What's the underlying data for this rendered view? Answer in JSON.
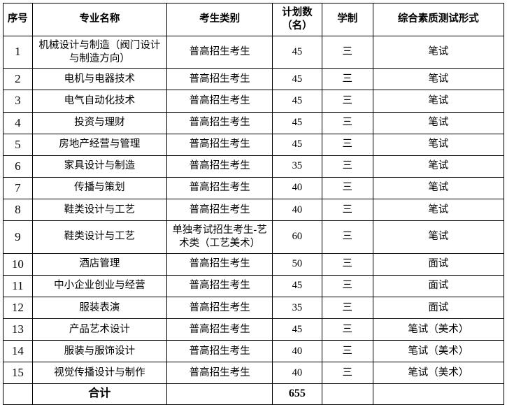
{
  "headers": {
    "seq": "序号",
    "name": "专业名称",
    "category": "考生类别",
    "plan": "计划数（名）",
    "duration": "学制",
    "eval": "综合素质测试形式"
  },
  "rows": [
    {
      "seq": "1",
      "name": "机械设计与制造（阀门设计与制造方向）",
      "category": "普高招生考生",
      "plan": "45",
      "duration": "三",
      "eval": "笔试"
    },
    {
      "seq": "2",
      "name": "电机与电器技术",
      "category": "普高招生考生",
      "plan": "45",
      "duration": "三",
      "eval": "笔试"
    },
    {
      "seq": "3",
      "name": "电气自动化技术",
      "category": "普高招生考生",
      "plan": "45",
      "duration": "三",
      "eval": "笔试"
    },
    {
      "seq": "4",
      "name": "投资与理财",
      "category": "普高招生考生",
      "plan": "45",
      "duration": "三",
      "eval": "笔试"
    },
    {
      "seq": "5",
      "name": "房地产经营与管理",
      "category": "普高招生考生",
      "plan": "45",
      "duration": "三",
      "eval": "笔试"
    },
    {
      "seq": "6",
      "name": "家具设计与制造",
      "category": "普高招生考生",
      "plan": "35",
      "duration": "三",
      "eval": "笔试"
    },
    {
      "seq": "7",
      "name": "传播与策划",
      "category": "普高招生考生",
      "plan": "40",
      "duration": "三",
      "eval": "笔试"
    },
    {
      "seq": "8",
      "name": "鞋类设计与工艺",
      "category": "普高招生考生",
      "plan": "40",
      "duration": "三",
      "eval": "笔试"
    },
    {
      "seq": "9",
      "name": "鞋类设计与工艺",
      "category": "单独考试招生考生-艺术类（工艺美术）",
      "plan": "60",
      "duration": "三",
      "eval": "笔试"
    },
    {
      "seq": "10",
      "name": "酒店管理",
      "category": "普高招生考生",
      "plan": "50",
      "duration": "三",
      "eval": "面试"
    },
    {
      "seq": "11",
      "name": "中小企业创业与经营",
      "category": "普高招生考生",
      "plan": "45",
      "duration": "三",
      "eval": "面试"
    },
    {
      "seq": "12",
      "name": "服装表演",
      "category": "普高招生考生",
      "plan": "35",
      "duration": "三",
      "eval": "面试"
    },
    {
      "seq": "13",
      "name": "产品艺术设计",
      "category": "普高招生考生",
      "plan": "45",
      "duration": "三",
      "eval": "笔试（美术）"
    },
    {
      "seq": "14",
      "name": "服装与服饰设计",
      "category": "普高招生考生",
      "plan": "40",
      "duration": "三",
      "eval": "笔试（美术）"
    },
    {
      "seq": "15",
      "name": "视觉传播设计与制作",
      "category": "普高招生考生",
      "plan": "40",
      "duration": "三",
      "eval": "笔试（美术）"
    }
  ],
  "total": {
    "label": "合计",
    "value": "655"
  },
  "style": {
    "border_color": "#000000",
    "background_color": "#ffffff",
    "text_color": "#000000",
    "font_size_body": 14.5,
    "font_size_header": 14.5,
    "font_size_seq": 17,
    "font_size_total": 16
  }
}
